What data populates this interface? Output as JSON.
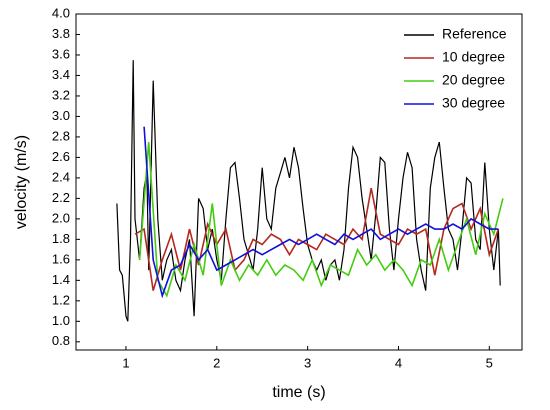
{
  "chart_data": {
    "type": "line",
    "x_label": "time (s)",
    "y_label": "velocity (m/s)",
    "xlim": [
      0.45,
      5.36
    ],
    "ylim": [
      0.72,
      4.0
    ],
    "xticks": [
      1,
      2,
      3,
      4,
      5
    ],
    "yticks": [
      0.8,
      {
        "value": 1,
        "label": "1.0"
      },
      1.2,
      1.4,
      1.6,
      1.8,
      {
        "value": 2,
        "label": "2.0"
      },
      2.2,
      2.4,
      2.6,
      2.8,
      {
        "value": 3,
        "label": "3.0"
      },
      3.2,
      3.4,
      3.6,
      3.8,
      {
        "value": 4,
        "label": "4.0"
      }
    ],
    "legend": "upper right",
    "series": [
      {
        "name": "Reference",
        "color": "#000000",
        "x": [
          0.9,
          0.93,
          0.96,
          1.0,
          1.02,
          1.05,
          1.08,
          1.1,
          1.15,
          1.2,
          1.23,
          1.25,
          1.3,
          1.35,
          1.4,
          1.45,
          1.5,
          1.55,
          1.6,
          1.65,
          1.7,
          1.75,
          1.8,
          1.85,
          1.9,
          1.95,
          2.0,
          2.05,
          2.1,
          2.15,
          2.2,
          2.25,
          2.3,
          2.4,
          2.45,
          2.5,
          2.55,
          2.6,
          2.65,
          2.7,
          2.75,
          2.8,
          2.85,
          2.9,
          2.95,
          3.0,
          3.05,
          3.1,
          3.15,
          3.2,
          3.25,
          3.3,
          3.35,
          3.4,
          3.45,
          3.5,
          3.55,
          3.6,
          3.65,
          3.7,
          3.75,
          3.8,
          3.85,
          3.9,
          3.95,
          4.0,
          4.05,
          4.1,
          4.15,
          4.2,
          4.25,
          4.3,
          4.35,
          4.4,
          4.45,
          4.5,
          4.55,
          4.6,
          4.65,
          4.7,
          4.75,
          4.8,
          4.85,
          4.9,
          4.95,
          5.0,
          5.05,
          5.1,
          5.12
        ],
        "values": [
          2.15,
          1.5,
          1.45,
          1.05,
          1.0,
          1.8,
          3.55,
          2.0,
          1.6,
          2.3,
          2.45,
          1.5,
          3.35,
          2.0,
          1.4,
          1.6,
          1.7,
          1.4,
          1.3,
          1.6,
          1.8,
          1.05,
          2.2,
          2.1,
          1.7,
          1.9,
          1.6,
          1.4,
          2.0,
          2.5,
          2.55,
          2.2,
          1.8,
          1.5,
          1.9,
          2.5,
          2.0,
          1.9,
          2.3,
          2.45,
          2.6,
          2.4,
          2.7,
          2.5,
          2.1,
          1.75,
          1.6,
          1.5,
          1.6,
          1.4,
          1.55,
          1.6,
          1.4,
          1.7,
          2.3,
          2.7,
          2.6,
          2.2,
          1.9,
          1.6,
          2.05,
          2.6,
          2.55,
          1.9,
          1.5,
          2.0,
          2.4,
          2.65,
          2.5,
          1.8,
          1.5,
          1.3,
          2.3,
          2.6,
          2.75,
          2.3,
          1.9,
          1.8,
          1.5,
          1.9,
          2.4,
          2.35,
          1.8,
          1.7,
          2.55,
          1.9,
          1.5,
          1.9,
          1.35
        ]
      },
      {
        "name": "10 degree",
        "color": "#b5281e",
        "x": [
          1.1,
          1.2,
          1.3,
          1.4,
          1.5,
          1.6,
          1.7,
          1.8,
          1.9,
          2.0,
          2.1,
          2.2,
          2.3,
          2.4,
          2.5,
          2.6,
          2.7,
          2.8,
          2.9,
          3.0,
          3.1,
          3.2,
          3.3,
          3.4,
          3.5,
          3.6,
          3.7,
          3.8,
          3.9,
          4.0,
          4.1,
          4.2,
          4.3,
          4.4,
          4.5,
          4.6,
          4.7,
          4.8,
          4.9,
          5.0,
          5.1
        ],
        "values": [
          1.85,
          1.9,
          1.3,
          1.6,
          1.85,
          1.5,
          1.9,
          1.55,
          1.95,
          1.75,
          1.9,
          1.5,
          1.6,
          1.8,
          1.75,
          1.85,
          1.8,
          1.65,
          1.8,
          1.75,
          1.7,
          1.85,
          1.8,
          1.75,
          1.9,
          1.8,
          2.3,
          1.85,
          1.8,
          1.75,
          1.9,
          1.85,
          1.9,
          1.45,
          1.9,
          2.1,
          2.15,
          1.9,
          2.1,
          1.65,
          1.9
        ]
      },
      {
        "name": "20 degree",
        "color": "#44cc11",
        "x": [
          1.15,
          1.25,
          1.35,
          1.45,
          1.55,
          1.65,
          1.75,
          1.85,
          1.95,
          2.05,
          2.15,
          2.25,
          2.35,
          2.45,
          2.55,
          2.65,
          2.75,
          2.85,
          2.95,
          3.05,
          3.15,
          3.25,
          3.35,
          3.45,
          3.55,
          3.65,
          3.75,
          3.85,
          3.95,
          4.05,
          4.15,
          4.25,
          4.35,
          4.45,
          4.55,
          4.65,
          4.75,
          4.85,
          4.95,
          5.05,
          5.15
        ],
        "values": [
          1.6,
          2.75,
          1.4,
          1.25,
          1.55,
          1.4,
          1.75,
          1.45,
          2.15,
          1.35,
          1.6,
          1.4,
          1.55,
          1.45,
          1.6,
          1.45,
          1.55,
          1.5,
          1.4,
          1.6,
          1.35,
          1.55,
          1.5,
          1.45,
          1.7,
          1.55,
          1.65,
          1.5,
          1.6,
          1.5,
          1.35,
          1.6,
          1.55,
          1.8,
          1.5,
          1.75,
          2.0,
          1.65,
          2.05,
          1.85,
          2.2
        ]
      },
      {
        "name": "30 degree",
        "color": "#1010dd",
        "x": [
          1.2,
          1.3,
          1.4,
          1.5,
          1.6,
          1.7,
          1.8,
          1.9,
          2.0,
          2.1,
          2.2,
          2.3,
          2.4,
          2.5,
          2.6,
          2.7,
          2.8,
          2.9,
          3.0,
          3.1,
          3.2,
          3.3,
          3.4,
          3.5,
          3.6,
          3.7,
          3.8,
          3.9,
          4.0,
          4.1,
          4.2,
          4.3,
          4.4,
          4.5,
          4.6,
          4.7,
          4.8,
          4.9,
          5.0,
          5.1
        ],
        "values": [
          2.9,
          1.6,
          1.25,
          1.5,
          1.55,
          1.75,
          1.6,
          1.7,
          1.5,
          1.55,
          1.6,
          1.65,
          1.7,
          1.65,
          1.7,
          1.75,
          1.8,
          1.75,
          1.8,
          1.85,
          1.8,
          1.75,
          1.85,
          1.8,
          1.85,
          1.9,
          1.8,
          1.85,
          1.9,
          1.85,
          1.9,
          1.95,
          1.9,
          1.9,
          1.95,
          1.9,
          2.0,
          1.95,
          1.9,
          1.9
        ]
      }
    ]
  }
}
